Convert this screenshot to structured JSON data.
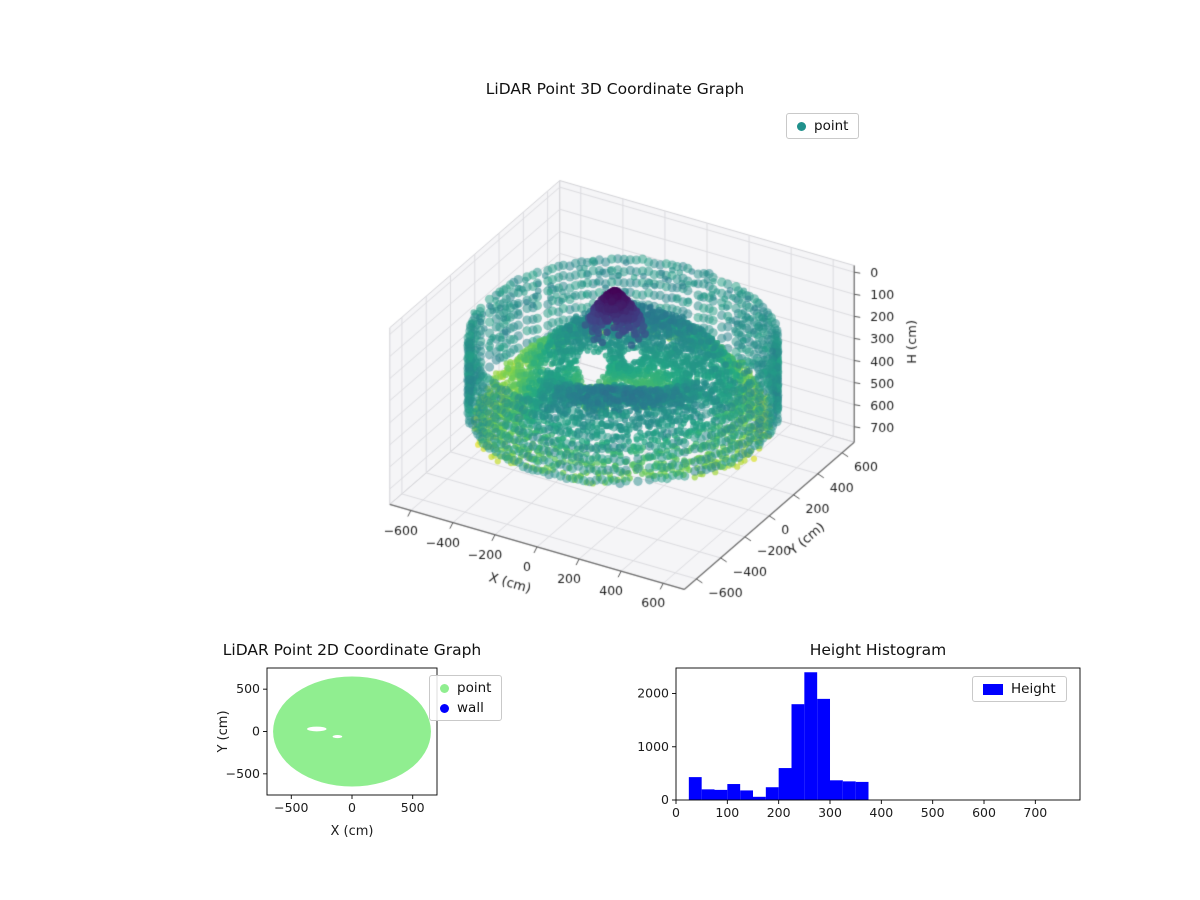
{
  "chart_data": [
    {
      "type": "scatter3d",
      "title": "LiDAR Point 3D Coordinate Graph",
      "xlabel": "X (cm)",
      "ylabel": "Y (cm)",
      "zlabel": "H (cm)",
      "xticks": [
        -600,
        -400,
        -200,
        0,
        200,
        400,
        600
      ],
      "yticks": [
        -600,
        -400,
        -200,
        0,
        200,
        400,
        600
      ],
      "zticks": [
        0,
        100,
        200,
        300,
        400,
        500,
        600,
        700
      ],
      "xlim": [
        -700,
        700
      ],
      "ylim": [
        -700,
        700
      ],
      "zlim": [
        -30,
        770
      ],
      "zaxis_inverted": true,
      "view": {
        "elev": 30,
        "azim": -60
      },
      "legend": [
        {
          "label": "point",
          "color": "#20918c"
        }
      ],
      "colormap": {
        "name": "viridis",
        "stops": [
          [
            0,
            "#440154"
          ],
          [
            0.2,
            "#414487"
          ],
          [
            0.4,
            "#2a788e"
          ],
          [
            0.6,
            "#22a884"
          ],
          [
            0.8,
            "#7ad151"
          ],
          [
            1,
            "#fde725"
          ]
        ]
      },
      "cloud": {
        "seed": 7,
        "floor": {
          "r0": 70,
          "r1": 612,
          "dr": 15,
          "dtheta": 2.4,
          "base_h": 340,
          "hnorm": 580
        },
        "rim": {
          "radius": 638,
          "dtheta": 2.25,
          "h_min": 160,
          "h_max": 460,
          "h_step": 50
        },
        "blob": {
          "cx": -80,
          "cy": 80,
          "sigma": 60,
          "rmax": 150,
          "count": 650,
          "h_min": 15,
          "h_range": 180
        },
        "holes": [
          [
            -170,
            60,
            65
          ],
          [
            -40,
            150,
            45
          ],
          [
            320,
            120,
            50
          ],
          [
            430,
            -70,
            40
          ],
          [
            -320,
            -40,
            40
          ]
        ],
        "arcs": {
          "radii": [
            500,
            545,
            590,
            635
          ],
          "h_min": 130,
          "h_range": 100
        }
      }
    },
    {
      "type": "scatter",
      "title": "LiDAR Point 2D Coordinate Graph",
      "xlabel": "X (cm)",
      "ylabel": "Y (cm)",
      "xticks": [
        -500,
        0,
        500
      ],
      "yticks": [
        -500,
        0,
        500
      ],
      "xlim": [
        -700,
        700
      ],
      "ylim": [
        -750,
        750
      ],
      "legend": [
        {
          "label": "point",
          "color": "#90ee90"
        },
        {
          "label": "wall",
          "color": "#0000ff"
        }
      ],
      "disc": {
        "cx": 0,
        "cy": 0,
        "radius": 650,
        "color": "#90ee90"
      },
      "gaps": [
        [
          -290,
          30,
          80,
          28
        ],
        [
          -120,
          -60,
          40,
          18
        ]
      ]
    },
    {
      "type": "histogram",
      "title": "Height Histogram",
      "legend": [
        {
          "label": "Height",
          "color": "#0000ff"
        }
      ],
      "bin_start": 25,
      "bin_width": 25,
      "values": [
        430,
        200,
        190,
        300,
        180,
        60,
        240,
        600,
        1800,
        2400,
        1900,
        370,
        350,
        340
      ],
      "xticks": [
        0,
        100,
        200,
        300,
        400,
        500,
        600,
        700
      ],
      "yticks": [
        0,
        1000,
        2000
      ],
      "xlim": [
        0,
        787
      ],
      "ylim": [
        0,
        2480
      ]
    }
  ]
}
